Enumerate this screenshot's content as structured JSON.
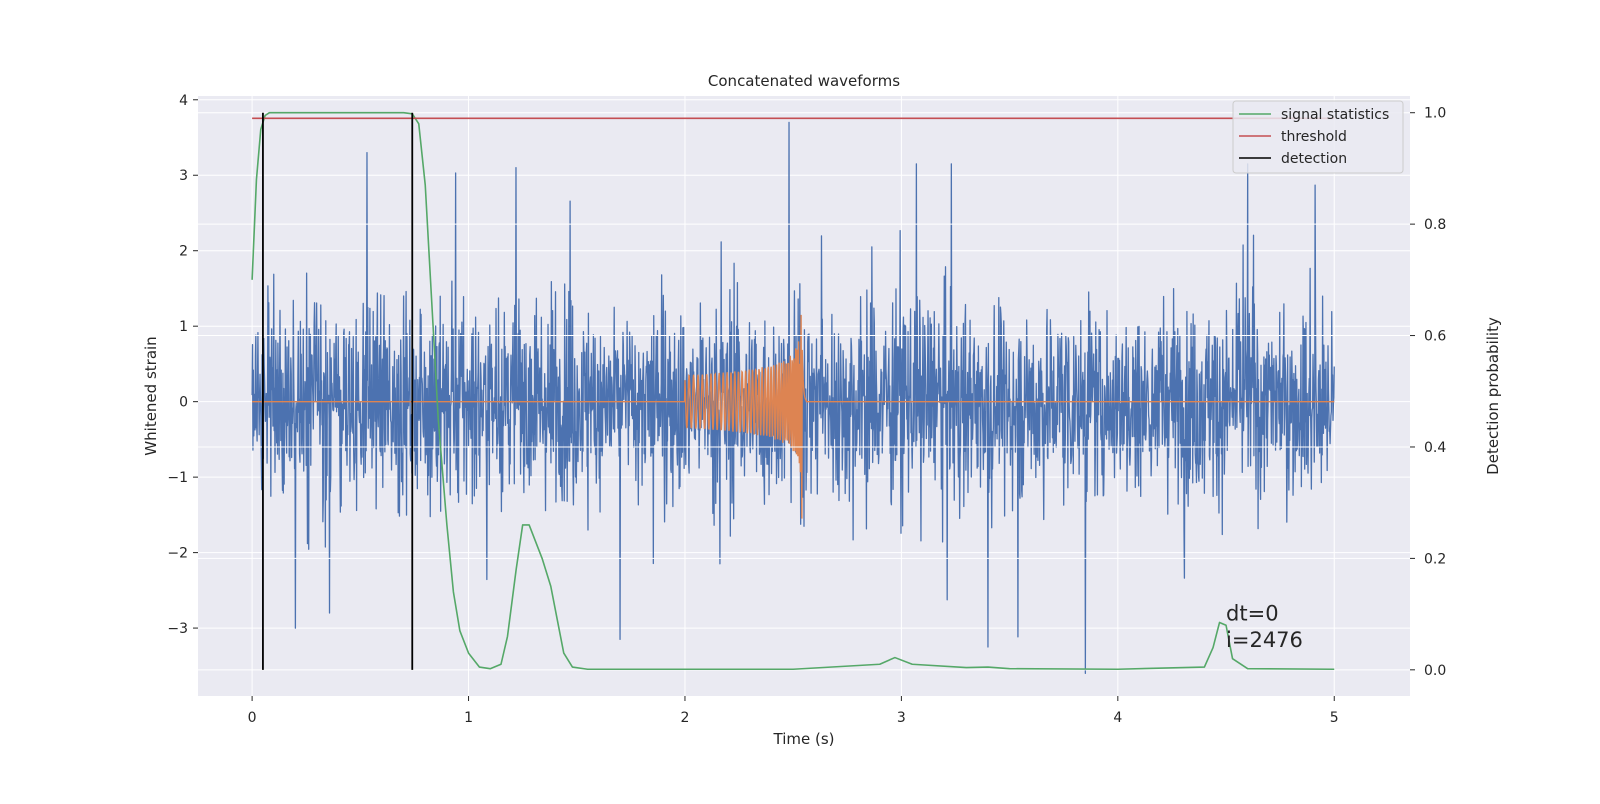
{
  "chart_data": {
    "type": "line",
    "title": "Concatenated waveforms",
    "xlabel": "Time (s)",
    "ylabel_left": "Whitened strain",
    "ylabel_right": "Detection probability",
    "xlim": [
      -0.25,
      5.35
    ],
    "ylim_left": [
      -3.9,
      4.05
    ],
    "ylim_right": [
      -0.047,
      1.03
    ],
    "x_ticks": [
      0,
      1,
      2,
      3,
      4,
      5
    ],
    "x_tick_labels": [
      "0",
      "1",
      "2",
      "3",
      "4",
      "5"
    ],
    "y_left_ticks": [
      -3,
      -2,
      -1,
      0,
      1,
      2,
      3,
      4
    ],
    "y_left_tick_labels": [
      "−3",
      "−2",
      "−1",
      "0",
      "1",
      "2",
      "3",
      "4"
    ],
    "y_right_ticks": [
      0.0,
      0.2,
      0.4,
      0.6,
      0.8,
      1.0
    ],
    "y_right_tick_labels": [
      "0.0",
      "0.2",
      "0.4",
      "0.6",
      "0.8",
      "1.0"
    ],
    "grid": true,
    "legend_position": "top-right",
    "legend": [
      {
        "label": "signal statistics",
        "color": "#55a868"
      },
      {
        "label": "threshold",
        "color": "#c44e52"
      },
      {
        "label": "detection",
        "color": "#000000"
      }
    ],
    "series": [
      {
        "name": "whitened strain (noise)",
        "axis": "left",
        "color": "#4c72b0",
        "x_range": [
          0,
          5
        ],
        "envelope": {
          "typical_peak": 1.5,
          "max": 3.7,
          "min": -3.6
        },
        "notable_peaks": [
          {
            "x": 2.48,
            "y": 3.7
          },
          {
            "x": 0.53,
            "y": 3.3
          },
          {
            "x": 1.22,
            "y": 3.1
          },
          {
            "x": 3.07,
            "y": 3.15
          },
          {
            "x": 3.23,
            "y": 3.15
          },
          {
            "x": 4.6,
            "y": 3.15
          },
          {
            "x": 3.85,
            "y": -3.6
          },
          {
            "x": 3.4,
            "y": -3.25
          },
          {
            "x": 1.7,
            "y": -3.15
          },
          {
            "x": 0.2,
            "y": -3.0
          }
        ]
      },
      {
        "name": "injected chirp",
        "axis": "left",
        "color": "#dd8452",
        "t_start": 2.0,
        "t_merge": 2.54,
        "amplitude_start": 0.35,
        "amplitude_peak": 1.15,
        "amplitude_min": -1.55
      },
      {
        "name": "signal statistics",
        "axis": "right",
        "color": "#55a868",
        "x": [
          0,
          0.02,
          0.04,
          0.06,
          0.08,
          0.1,
          0.2,
          0.4,
          0.6,
          0.7,
          0.74,
          0.77,
          0.8,
          0.83,
          0.86,
          0.9,
          0.93,
          0.96,
          1.0,
          1.05,
          1.1,
          1.15,
          1.18,
          1.2,
          1.22,
          1.25,
          1.28,
          1.31,
          1.34,
          1.38,
          1.41,
          1.44,
          1.48,
          1.55,
          2.0,
          2.5,
          2.9,
          2.97,
          3.05,
          3.3,
          3.4,
          3.5,
          4.0,
          4.4,
          4.44,
          4.47,
          4.5,
          4.53,
          4.6,
          5.0
        ],
        "y": [
          0.7,
          0.88,
          0.97,
          0.995,
          1.0,
          1.0,
          1.0,
          1.0,
          1.0,
          1.0,
          0.998,
          0.98,
          0.87,
          0.66,
          0.45,
          0.26,
          0.14,
          0.07,
          0.03,
          0.005,
          0.002,
          0.01,
          0.06,
          0.12,
          0.18,
          0.26,
          0.26,
          0.23,
          0.2,
          0.15,
          0.09,
          0.03,
          0.005,
          0.001,
          0.001,
          0.001,
          0.01,
          0.022,
          0.01,
          0.004,
          0.005,
          0.002,
          0.001,
          0.005,
          0.04,
          0.085,
          0.08,
          0.02,
          0.002,
          0.001
        ]
      },
      {
        "name": "threshold",
        "axis": "right",
        "color": "#c44e52",
        "x": [
          0,
          5
        ],
        "y": [
          0.99,
          0.99
        ]
      },
      {
        "name": "detection",
        "axis": "right",
        "color": "#000000",
        "x": [
          0.05,
          0.74
        ],
        "y_range": [
          0,
          1.0
        ]
      }
    ],
    "annotations": [
      {
        "text": "dt=0",
        "x": 4.5,
        "y": -2.9
      },
      {
        "text": "i=2476",
        "x": 4.5,
        "y": -3.25
      }
    ]
  }
}
